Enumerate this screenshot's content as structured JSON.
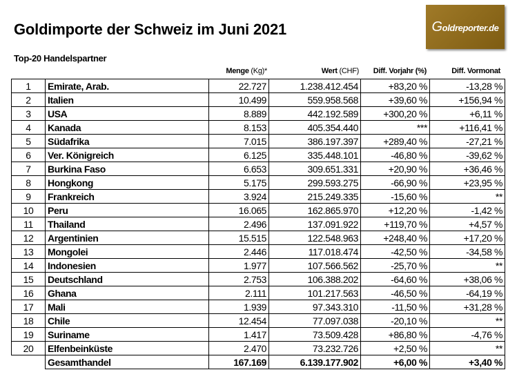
{
  "title": "Goldimporte der Schweiz im Juni 2021",
  "subtitle": "Top-20 Handelspartner",
  "logo_text": "Goldreporter.de",
  "logo_color": "#8B6A1C",
  "headers": {
    "menge_bold": "Menge",
    "menge_unit": " (Kg)*",
    "wert_bold": "Wert",
    "wert_unit": " (CHF)",
    "vorjahr": "Diff. Vorjahr (%)",
    "vormonat": "Diff. Vormonat"
  },
  "rows": [
    {
      "rank": "1",
      "country": "Emirate, Arab.",
      "menge": "22.727",
      "wert": "1.238.412.454",
      "vorjahr": "+83,20 %",
      "vormonat": "-13,28 %"
    },
    {
      "rank": "2",
      "country": "Italien",
      "menge": "10.499",
      "wert": "559.958.568",
      "vorjahr": "+39,60 %",
      "vormonat": "+156,94 %"
    },
    {
      "rank": "3",
      "country": "USA",
      "menge": "8.889",
      "wert": "442.192.589",
      "vorjahr": "+300,20 %",
      "vormonat": "+6,11 %"
    },
    {
      "rank": "4",
      "country": "Kanada",
      "menge": "8.153",
      "wert": "405.354.440",
      "vorjahr": "***",
      "vormonat": "+116,41 %"
    },
    {
      "rank": "5",
      "country": "Südafrika",
      "menge": "7.015",
      "wert": "386.197.397",
      "vorjahr": "+289,40 %",
      "vormonat": "-27,21 %"
    },
    {
      "rank": "6",
      "country": "Ver. Königreich",
      "menge": "6.125",
      "wert": "335.448.101",
      "vorjahr": "-46,80 %",
      "vormonat": "-39,62 %"
    },
    {
      "rank": "7",
      "country": "Burkina Faso",
      "menge": "6.653",
      "wert": "309.651.331",
      "vorjahr": "+20,90 %",
      "vormonat": "+36,46 %"
    },
    {
      "rank": "8",
      "country": "Hongkong",
      "menge": "5.175",
      "wert": "299.593.275",
      "vorjahr": "-66,90 %",
      "vormonat": "+23,95 %"
    },
    {
      "rank": "9",
      "country": "Frankreich",
      "menge": "3.924",
      "wert": "215.249.335",
      "vorjahr": "-15,60 %",
      "vormonat": "**"
    },
    {
      "rank": "10",
      "country": "Peru",
      "menge": "16.065",
      "wert": "162.865.970",
      "vorjahr": "+12,20 %",
      "vormonat": "-1,42 %"
    },
    {
      "rank": "11",
      "country": "Thailand",
      "menge": "2.496",
      "wert": "137.091.922",
      "vorjahr": "+119,70 %",
      "vormonat": "+4,57 %"
    },
    {
      "rank": "12",
      "country": "Argentinien",
      "menge": "15.515",
      "wert": "122.548.963",
      "vorjahr": "+248,40 %",
      "vormonat": "+17,20 %"
    },
    {
      "rank": "13",
      "country": "Mongolei",
      "menge": "2.446",
      "wert": "117.018.474",
      "vorjahr": "-42,50 %",
      "vormonat": "-34,58 %"
    },
    {
      "rank": "14",
      "country": "Indonesien",
      "menge": "1.977",
      "wert": "107.566.562",
      "vorjahr": "-25,70 %",
      "vormonat": "**"
    },
    {
      "rank": "15",
      "country": "Deutschland",
      "menge": "2.753",
      "wert": "106.388.202",
      "vorjahr": "-64,60 %",
      "vormonat": "+38,06 %"
    },
    {
      "rank": "16",
      "country": "Ghana",
      "menge": "2.111",
      "wert": "101.217.563",
      "vorjahr": "-46,50 %",
      "vormonat": "-64,19 %"
    },
    {
      "rank": "17",
      "country": "Mali",
      "menge": "1.939",
      "wert": "97.343.310",
      "vorjahr": "-11,50 %",
      "vormonat": "+31,28 %"
    },
    {
      "rank": "18",
      "country": "Chile",
      "menge": "12.454",
      "wert": "77.097.038",
      "vorjahr": "-20,10 %",
      "vormonat": "**"
    },
    {
      "rank": "19",
      "country": "Suriname",
      "menge": "1.417",
      "wert": "73.509.428",
      "vorjahr": "+86,80 %",
      "vormonat": "-4,76 %"
    },
    {
      "rank": "20",
      "country": "Elfenbeinküste",
      "menge": "2.470",
      "wert": "73.232.726",
      "vorjahr": "+2,50 %",
      "vormonat": "**"
    }
  ],
  "total": {
    "label": "Gesamthandel",
    "menge": "167.169",
    "wert": "6.139.177.902",
    "vorjahr": "+6,00 %",
    "vormonat": "+3,40 %"
  }
}
